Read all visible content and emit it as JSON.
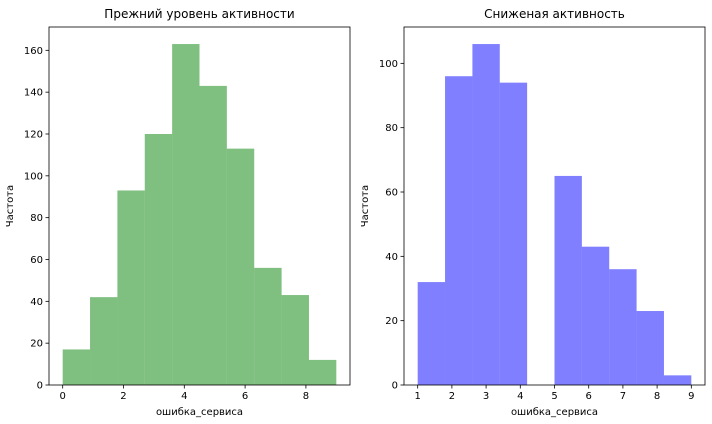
{
  "chart_data": [
    {
      "type": "bar",
      "title": "Прежний уровень активности",
      "xlabel": "ошибка_сервиса",
      "ylabel": "Частота",
      "color": "#008000",
      "opacity": 0.5,
      "bin_edges": [
        0,
        0.9,
        1.8,
        2.7,
        3.6,
        4.5,
        5.4,
        6.3,
        7.2,
        8.1,
        9.0
      ],
      "values": [
        17,
        42,
        93,
        120,
        163,
        143,
        113,
        56,
        43,
        12
      ],
      "xlim": [
        -0.45,
        9.45
      ],
      "ylim": [
        0,
        171.15
      ],
      "xticks": [
        0,
        2,
        4,
        6,
        8
      ],
      "yticks": [
        0,
        20,
        40,
        60,
        80,
        100,
        120,
        140,
        160
      ]
    },
    {
      "type": "bar",
      "title": "Сниженая активность",
      "xlabel": "ошибка_сервиса",
      "ylabel": "Частота",
      "color": "#0000ff",
      "opacity": 0.5,
      "bin_edges": [
        1.0,
        1.8,
        2.6,
        3.4,
        4.2,
        5.0,
        5.8,
        6.6,
        7.4,
        8.2,
        9.0
      ],
      "values": [
        32,
        96,
        106,
        94,
        0,
        65,
        43,
        36,
        23,
        3
      ],
      "xlim": [
        0.6,
        9.4
      ],
      "ylim": [
        0,
        111.3
      ],
      "xticks": [
        1,
        2,
        3,
        4,
        5,
        6,
        7,
        8,
        9
      ],
      "yticks": [
        0,
        20,
        40,
        60,
        80,
        100
      ]
    }
  ]
}
